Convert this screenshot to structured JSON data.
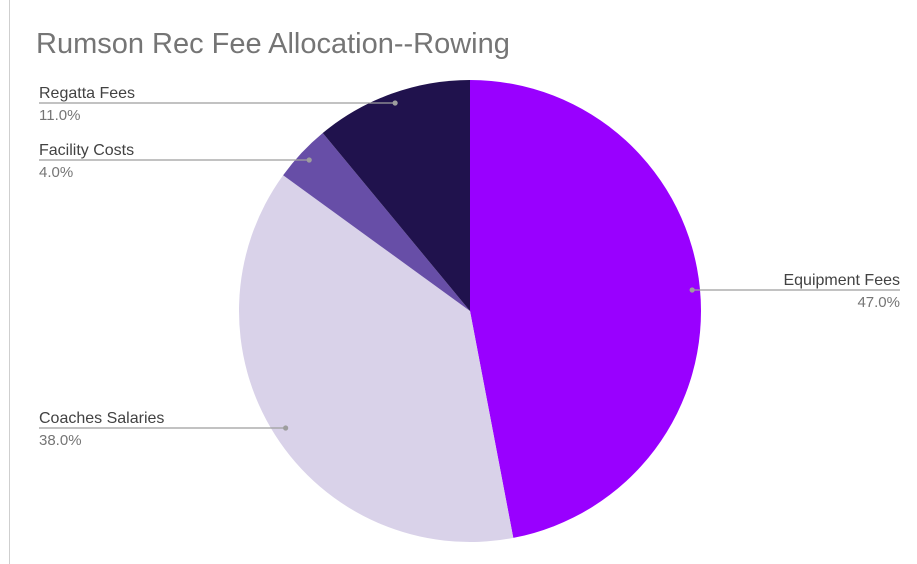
{
  "chart_data": {
    "type": "pie",
    "title": "Rumson Rec Fee Allocation--Rowing",
    "slices": [
      {
        "name": "Equipment Fees",
        "value": 47.0,
        "label": "47.0%",
        "color": "#9900ff"
      },
      {
        "name": "Coaches Salaries",
        "value": 38.0,
        "label": "38.0%",
        "color": "#d9d2e9"
      },
      {
        "name": "Facility Costs",
        "value": 4.0,
        "label": "4.0%",
        "color": "#674ea7"
      },
      {
        "name": "Regatta Fees",
        "value": 11.0,
        "label": "11.0%",
        "color": "#20124d"
      }
    ],
    "start_angle_deg": 0,
    "direction": "clockwise",
    "legend": "none",
    "label_style": "callout-lines"
  },
  "colors": {
    "title": "#757575",
    "label_name": "#424242",
    "label_value": "#757575",
    "leader_line": "#9e9e9e",
    "axis_rule": "#cfcfcf"
  }
}
